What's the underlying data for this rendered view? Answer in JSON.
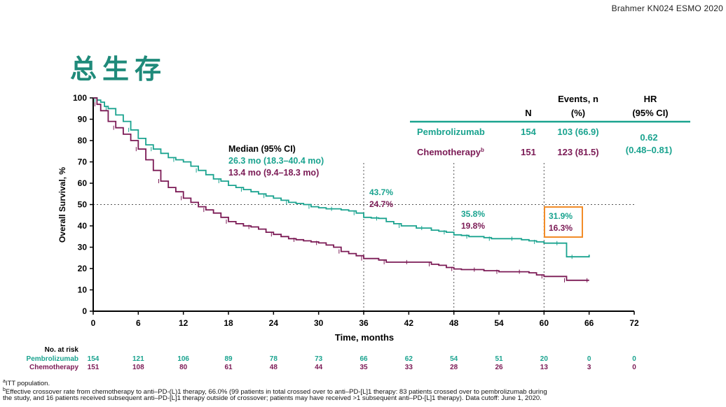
{
  "header": {
    "citation": "Brahmer  KN024  ESMO  2020",
    "title": "总生存"
  },
  "colors": {
    "pembrolizumab": "#1aa38f",
    "chemotherapy": "#7b1a55",
    "highlight_box": "#f28c28",
    "table_rule": "#1aa38f"
  },
  "chart_data": {
    "type": "line",
    "title": "总生存",
    "xlabel": "Time, months",
    "ylabel": "Overall Survival, %",
    "xlim": [
      0,
      72
    ],
    "ylim": [
      0,
      100
    ],
    "xticks": [
      0,
      6,
      12,
      18,
      24,
      30,
      36,
      42,
      48,
      54,
      60,
      66,
      72
    ],
    "yticks": [
      0,
      10,
      20,
      30,
      40,
      50,
      60,
      70,
      80,
      90,
      100
    ],
    "reference_line_y": 50,
    "reference_lines_x": [
      36,
      48,
      60
    ],
    "series": [
      {
        "name": "Pembrolizumab",
        "color": "#1aa38f",
        "x": [
          0,
          0.5,
          1,
          1.5,
          2,
          3,
          4,
          5,
          6,
          7,
          8,
          9,
          10,
          11,
          12,
          13,
          14,
          15,
          16,
          17,
          18,
          19,
          20,
          21,
          22,
          23,
          24,
          25,
          26,
          27,
          28,
          29,
          30,
          31,
          32,
          33,
          34,
          35,
          36,
          37,
          38,
          39,
          40,
          41,
          42,
          43,
          44,
          45,
          46,
          47,
          48,
          49,
          50,
          51,
          52,
          53,
          54,
          55,
          56,
          57,
          58,
          59,
          60,
          61,
          62,
          62.9,
          63,
          64,
          65,
          66
        ],
        "values": [
          100,
          99,
          98,
          96,
          95,
          92,
          89,
          85,
          81,
          78,
          76,
          74,
          72,
          71,
          70,
          68,
          66,
          64,
          62,
          61,
          59,
          58,
          57,
          56,
          55,
          54,
          53,
          52,
          51,
          50.5,
          50,
          49,
          48.5,
          48,
          48,
          47.5,
          47,
          46,
          44,
          43.7,
          43.5,
          42,
          41,
          40,
          40,
          39,
          39,
          38,
          37.5,
          37,
          35.8,
          35.5,
          35,
          35,
          34.5,
          34,
          34,
          34,
          34,
          33.5,
          33,
          32.5,
          31.9,
          31.9,
          31.9,
          31.9,
          25.5,
          25.5,
          25.5,
          26.5
        ]
      },
      {
        "name": "Chemotherapy",
        "color": "#7b1a55",
        "x": [
          0,
          0.5,
          1,
          2,
          3,
          4,
          5,
          6,
          7,
          8,
          9,
          10,
          11,
          12,
          13,
          14,
          15,
          16,
          17,
          18,
          19,
          20,
          21,
          22,
          23,
          24,
          25,
          26,
          27,
          28,
          29,
          30,
          31,
          32,
          33,
          34,
          35,
          36,
          37,
          38,
          39,
          40,
          41,
          42,
          43,
          44,
          45,
          46,
          47,
          48,
          49,
          50,
          51,
          52,
          53,
          54,
          55,
          56,
          57,
          58,
          59,
          60,
          61,
          62,
          63,
          64,
          65,
          66
        ],
        "values": [
          100,
          97,
          94,
          89,
          86,
          83,
          80,
          76,
          71,
          66,
          61,
          58,
          56,
          53,
          51,
          49,
          47.5,
          46,
          44,
          42,
          41,
          40,
          39.5,
          38.5,
          37,
          36,
          35,
          34,
          33.5,
          33,
          32.5,
          32,
          31,
          30,
          28,
          27,
          26,
          24.7,
          24.7,
          24,
          23,
          23,
          23,
          23,
          23,
          23,
          22,
          21.5,
          20.5,
          19.8,
          19.5,
          19.5,
          19.5,
          19,
          19,
          18.5,
          18.5,
          18.5,
          18.5,
          18,
          17,
          16.3,
          16.3,
          16.3,
          14.5,
          14.5,
          14.5,
          14.5
        ]
      }
    ],
    "annotations": {
      "median_header": "Median (95% CI)",
      "median_pembro": "26.3 mo (18.3–40.4 mo)",
      "median_chemo": "13.4 mo (9.4–18.3 mo)",
      "at36_pembro": "43.7%",
      "at36_chemo": "24.7%",
      "at48_pembro": "35.8%",
      "at48_chemo": "19.8%",
      "at60_pembro": "31.9%",
      "at60_chemo": "16.3%"
    }
  },
  "summary_table": {
    "headers": {
      "n": "N",
      "events_line1": "Events, n",
      "events_line2": "(%)",
      "hr_line1": "HR",
      "hr_line2": "(95% CI)"
    },
    "rows": [
      {
        "label": "Pembrolizumab",
        "n": "154",
        "events": "103 (66.9)"
      },
      {
        "label": "Chemotherapy",
        "superscript": "b",
        "n": "151",
        "events": "123 (81.5)"
      }
    ],
    "hr": "0.62",
    "hr_ci": "(0.48–0.81)"
  },
  "risk_table": {
    "title": "No. at risk",
    "rows": [
      {
        "label": "Pembrolizumab",
        "values": [
          "154",
          "121",
          "106",
          "89",
          "78",
          "73",
          "66",
          "62",
          "54",
          "51",
          "20",
          "0",
          "0"
        ]
      },
      {
        "label": "Chemotherapy",
        "values": [
          "151",
          "108",
          "80",
          "61",
          "48",
          "44",
          "35",
          "33",
          "28",
          "26",
          "13",
          "3",
          "0"
        ]
      }
    ]
  },
  "footnotes": {
    "a": "ITT  population.",
    "b_line1": "Effective crossover rate from chemotherapy  to anti–PD-(L)1  therapy, 66.0% (99 patients in total crossed over to anti–PD-[L]1  therapy: 83 patients  crossed over to pembrolizumab  during",
    "b_line2": "the study, and 16 patients  received subsequent  anti–PD-[L]1  therapy outside of crossover; patients may have received >1 subsequent  anti–PD-[L]1  therapy). Data cutoff: June 1, 2020."
  }
}
